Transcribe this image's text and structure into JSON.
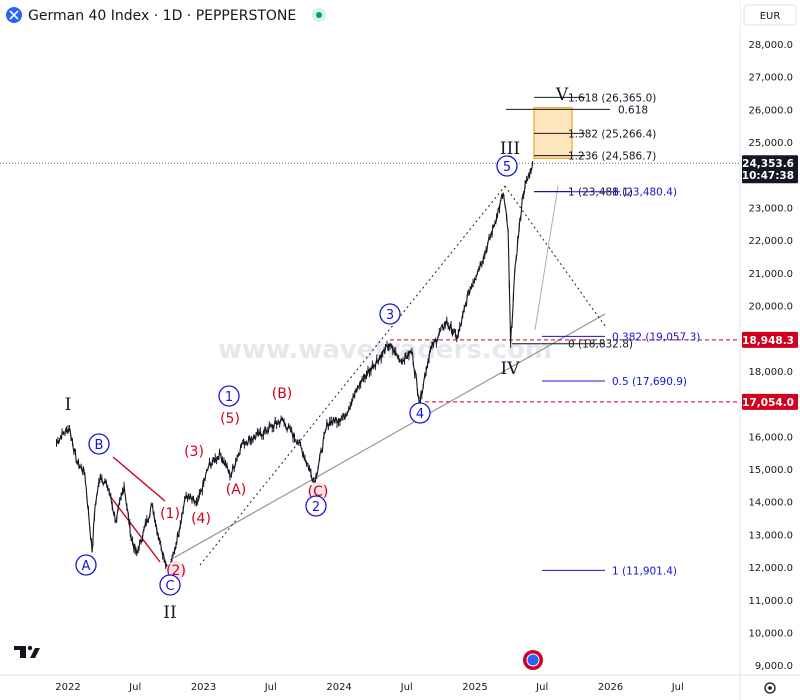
{
  "header": {
    "symbol_title": "German 40 Index · 1D · PEPPERSTONE",
    "currency": "EUR"
  },
  "watermark": "www.wavetraders.com",
  "colors": {
    "candle": "#131722",
    "red": "#d1001f",
    "blue": "#1515d8",
    "fib_orange": "#f5a623",
    "fib_fill": "#fde5bd",
    "trend": "#888888",
    "dotted": "#222222",
    "tag_black": "#131722",
    "tag_red": "#d1001f"
  },
  "chart_data": {
    "type": "line",
    "title": "German 40 Index · 1D · PEPPERSTONE",
    "x_ticks": [
      "2022",
      "Jul",
      "2023",
      "Jul",
      "2024",
      "Jul",
      "2025",
      "Jul",
      "2026",
      "Jul"
    ],
    "y_ticks": [
      "28,000.0",
      "27,000.0",
      "26,000.0",
      "25,000.0",
      "24,000.0",
      "23,000.0",
      "22,000.0",
      "21,000.0",
      "20,000.0",
      "19,000.0",
      "18,000.0",
      "17,000.0",
      "16,000.0",
      "15,000.0",
      "14,000.0",
      "13,000.0",
      "12,000.0",
      "11,000.0",
      "10,000.0",
      "9,000.0"
    ],
    "ylim": [
      8700,
      29100
    ],
    "grid": false,
    "series": [
      {
        "values": [
          {
            "x": "2021-12-01",
            "y": 15800
          },
          {
            "x": "2021-12-20",
            "y": 16100
          },
          {
            "x": "2022-01-05",
            "y": 16250
          },
          {
            "x": "2022-01-25",
            "y": 15200
          },
          {
            "x": "2022-02-15",
            "y": 14900
          },
          {
            "x": "2022-03-07",
            "y": 12450
          },
          {
            "x": "2022-03-15",
            "y": 13900
          },
          {
            "x": "2022-03-29",
            "y": 14800
          },
          {
            "x": "2022-04-20",
            "y": 14400
          },
          {
            "x": "2022-05-10",
            "y": 13400
          },
          {
            "x": "2022-06-01",
            "y": 14500
          },
          {
            "x": "2022-06-20",
            "y": 12900
          },
          {
            "x": "2022-07-05",
            "y": 12400
          },
          {
            "x": "2022-08-15",
            "y": 13900
          },
          {
            "x": "2022-09-05",
            "y": 12800
          },
          {
            "x": "2022-09-29",
            "y": 11850
          },
          {
            "x": "2022-10-15",
            "y": 12500
          },
          {
            "x": "2022-11-15",
            "y": 14200
          },
          {
            "x": "2022-12-15",
            "y": 13900
          },
          {
            "x": "2023-01-15",
            "y": 15100
          },
          {
            "x": "2023-02-15",
            "y": 15450
          },
          {
            "x": "2023-03-15",
            "y": 14800
          },
          {
            "x": "2023-04-15",
            "y": 15800
          },
          {
            "x": "2023-06-01",
            "y": 16050
          },
          {
            "x": "2023-07-31",
            "y": 16500
          },
          {
            "x": "2023-09-15",
            "y": 15800
          },
          {
            "x": "2023-10-27",
            "y": 14600
          },
          {
            "x": "2023-12-01",
            "y": 16400
          },
          {
            "x": "2024-01-15",
            "y": 16600
          },
          {
            "x": "2024-03-01",
            "y": 17700
          },
          {
            "x": "2024-05-15",
            "y": 18800
          },
          {
            "x": "2024-06-15",
            "y": 18300
          },
          {
            "x": "2024-07-15",
            "y": 18600
          },
          {
            "x": "2024-08-05",
            "y": 17050
          },
          {
            "x": "2024-09-01",
            "y": 18600
          },
          {
            "x": "2024-10-15",
            "y": 19500
          },
          {
            "x": "2024-11-15",
            "y": 19000
          },
          {
            "x": "2024-12-15",
            "y": 20400
          },
          {
            "x": "2025-01-31",
            "y": 21700
          },
          {
            "x": "2025-02-28",
            "y": 22700
          },
          {
            "x": "2025-03-18",
            "y": 23450
          },
          {
            "x": "2025-03-31",
            "y": 22300
          },
          {
            "x": "2025-04-07",
            "y": 18830
          },
          {
            "x": "2025-04-20",
            "y": 21300
          },
          {
            "x": "2025-05-10",
            "y": 23400
          },
          {
            "x": "2025-06-05",
            "y": 24350
          }
        ]
      }
    ],
    "levels": [
      {
        "label": "1.618 (26,365.0)",
        "value": 26365.0,
        "color": "#131722"
      },
      {
        "label": "0.618",
        "value": 26000,
        "color": "#131722"
      },
      {
        "label": "1.382 (25,266.4)",
        "value": 25266.4,
        "color": "#131722"
      },
      {
        "label": "1.236 (24,586.7)",
        "value": 24586.7,
        "color": "#131722"
      },
      {
        "label": "1 (23,488.1)",
        "value": 23488.1,
        "color": "#131722"
      },
      {
        "label": "1 (23,480.4)",
        "value": 23480.4,
        "color": "#1515d8"
      },
      {
        "label": "0.382 (19,057.3)",
        "value": 19057.3,
        "color": "#1515d8"
      },
      {
        "label": "0 (18,832.8)",
        "value": 18832.8,
        "color": "#131722"
      },
      {
        "label": "0.5 (17,690.9)",
        "value": 17690.9,
        "color": "#1515d8"
      },
      {
        "label": "1 (11,901.4)",
        "value": 11901.4,
        "color": "#1515d8"
      }
    ],
    "price_tags": [
      {
        "label": "24,353.6",
        "sub": "10:47:38",
        "value": 24353.6,
        "color": "#131722"
      },
      {
        "label": "18,948.3",
        "value": 18948.3,
        "color": "#d1001f"
      },
      {
        "label": "17,054.0",
        "value": 17054.0,
        "color": "#d1001f"
      }
    ],
    "wave_labels": [
      {
        "text": "I",
        "style": "roman"
      },
      {
        "text": "II",
        "style": "roman"
      },
      {
        "text": "III",
        "style": "roman"
      },
      {
        "text": "IV",
        "style": "roman"
      },
      {
        "text": "V",
        "style": "roman"
      },
      {
        "text": "(1)",
        "style": "red"
      },
      {
        "text": "(2)",
        "style": "red"
      },
      {
        "text": "(3)",
        "style": "red"
      },
      {
        "text": "(4)",
        "style": "red"
      },
      {
        "text": "(5)",
        "style": "red"
      },
      {
        "text": "(A)",
        "style": "red"
      },
      {
        "text": "(B)",
        "style": "red"
      },
      {
        "text": "(C)",
        "style": "red"
      },
      {
        "text": "A",
        "style": "blue"
      },
      {
        "text": "B",
        "style": "blue"
      },
      {
        "text": "C",
        "style": "blue"
      },
      {
        "text": "1",
        "style": "blue"
      },
      {
        "text": "2",
        "style": "blue"
      },
      {
        "text": "3",
        "style": "blue"
      },
      {
        "text": "4",
        "style": "blue"
      },
      {
        "text": "5",
        "style": "blue"
      }
    ]
  }
}
